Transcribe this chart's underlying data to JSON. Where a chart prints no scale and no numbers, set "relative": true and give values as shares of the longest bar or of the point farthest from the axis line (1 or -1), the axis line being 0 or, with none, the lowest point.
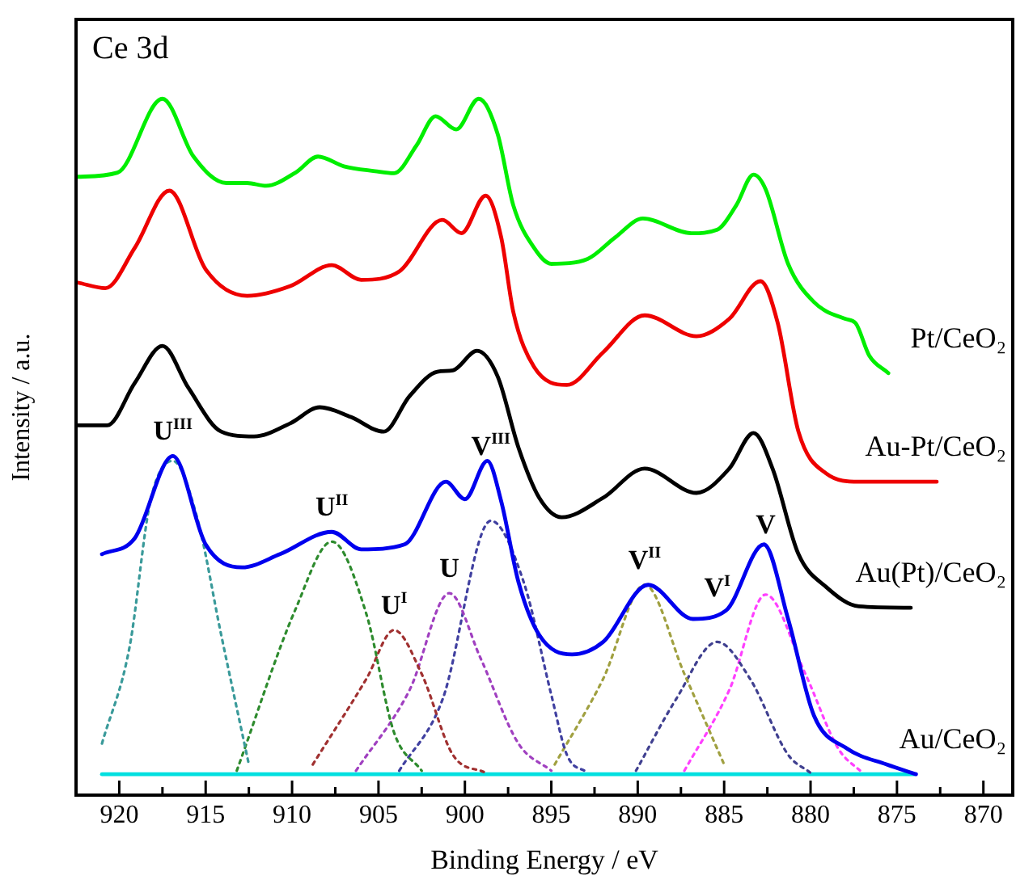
{
  "chart_data": {
    "type": "line",
    "title": "Ce 3d",
    "xlabel": "Binding Energy / eV",
    "ylabel": "Intensity / a.u.",
    "relative": true,
    "legend": false,
    "marker": "none",
    "xlim": [
      922.5,
      868.3
    ],
    "xticks": [
      920,
      {
        "value": 917.5,
        "label": null
      },
      915,
      {
        "value": 912.5,
        "label": null
      },
      910,
      {
        "value": 907.5,
        "label": null
      },
      905,
      {
        "value": 902.5,
        "label": null
      },
      900,
      {
        "value": 897.5,
        "label": null
      },
      895,
      {
        "value": 892.5,
        "label": null
      },
      890,
      {
        "value": 887.5,
        "label": null
      },
      885,
      {
        "value": 882.5,
        "label": null
      },
      880,
      {
        "value": 877.5,
        "label": null
      },
      875,
      {
        "value": 872.5,
        "label": null
      },
      870
    ],
    "series": [
      {
        "name": "Pt/CeO₂",
        "color": "#00ee00",
        "line_style": "solid",
        "x": [
          922.4,
          920.1,
          917.5,
          915.7,
          913.8,
          912.6,
          911.5,
          909.8,
          908.5,
          907,
          905.2,
          904.1,
          902.8,
          901.7,
          900.5,
          899.2,
          898.1,
          897.2,
          896,
          895,
          892.9,
          891.3,
          889.7,
          886.9,
          885.4,
          884.3,
          883.3,
          882.6,
          881.3,
          879.8,
          878,
          877.4,
          876.6,
          875.5
        ],
        "values": [
          0.888,
          0.894,
          1,
          0.917,
          0.879,
          0.879,
          0.875,
          0.894,
          0.917,
          0.903,
          0.896,
          0.893,
          0.933,
          0.975,
          0.956,
          1,
          0.949,
          0.847,
          0.786,
          0.763,
          0.77,
          0.801,
          0.828,
          0.807,
          0.812,
          0.847,
          0.891,
          0.87,
          0.763,
          0.708,
          0.684,
          0.678,
          0.631,
          0.606
        ]
      },
      {
        "name": "Au-Pt/CeO₂",
        "color": "#ee0000",
        "line_style": "solid",
        "x": [
          922.4,
          920.8,
          919.1,
          917.1,
          915,
          912.6,
          910.1,
          907.7,
          906,
          903.8,
          901.3,
          900.2,
          898.8,
          897.9,
          897.2,
          896,
          894.1,
          892,
          889.6,
          886.6,
          884.7,
          882.9,
          881.9,
          880.7,
          879.1,
          877.2,
          872.7
        ],
        "values": [
          0.736,
          0.728,
          0.786,
          0.868,
          0.755,
          0.717,
          0.731,
          0.761,
          0.74,
          0.752,
          0.826,
          0.807,
          0.861,
          0.801,
          0.694,
          0.615,
          0.589,
          0.636,
          0.689,
          0.659,
          0.684,
          0.738,
          0.678,
          0.522,
          0.462,
          0.45,
          0.45
        ]
      },
      {
        "name": "Au(Pt)/CeO₂",
        "color": "#000000",
        "line_style": "solid",
        "x": [
          922.4,
          920.7,
          919.1,
          917.5,
          916,
          914.1,
          912.2,
          910.1,
          908.4,
          906.6,
          904.7,
          903.2,
          901.6,
          900.7,
          899.3,
          898.1,
          896.9,
          895.7,
          894.4,
          892,
          889.6,
          886.6,
          884.7,
          883.3,
          882.2,
          880.7,
          879.1,
          877.2,
          874.2
        ],
        "values": [
          0.531,
          0.531,
          0.592,
          0.645,
          0.585,
          0.522,
          0.515,
          0.534,
          0.557,
          0.543,
          0.522,
          0.573,
          0.608,
          0.61,
          0.638,
          0.601,
          0.499,
          0.427,
          0.399,
          0.427,
          0.469,
          0.434,
          0.469,
          0.52,
          0.469,
          0.346,
          0.299,
          0.271,
          0.269
        ]
      },
      {
        "name": "Au/CeO₂",
        "color": "#0000ee",
        "line_style": "solid",
        "x": [
          921,
          919.1,
          916.9,
          915,
          912.9,
          910.7,
          907.7,
          906,
          903.5,
          901.1,
          900,
          898.7,
          897.9,
          896.9,
          895.7,
          893.8,
          892,
          889.4,
          886.8,
          884.9,
          882.7,
          881.3,
          879.8,
          877.9,
          875.6,
          873.9
        ],
        "values": [
          0.346,
          0.369,
          0.487,
          0.36,
          0.327,
          0.346,
          0.378,
          0.353,
          0.36,
          0.45,
          0.425,
          0.48,
          0.422,
          0.306,
          0.23,
          0.202,
          0.22,
          0.302,
          0.253,
          0.265,
          0.36,
          0.253,
          0.114,
          0.067,
          0.044,
          0.03
        ]
      },
      {
        "color": "#3a9a9a",
        "line_style": "dotted",
        "x": [
          921,
          919.4,
          918.2,
          916.9,
          915.5,
          914.1,
          912.5
        ],
        "values": [
          0.074,
          0.213,
          0.422,
          0.48,
          0.399,
          0.23,
          0.044
        ]
      },
      {
        "color": "#2e8b2e",
        "line_style": "dotted",
        "x": [
          913.2,
          909.8,
          907.7,
          905.7,
          904.1,
          902.5
        ],
        "values": [
          0.035,
          0.267,
          0.364,
          0.26,
          0.09,
          0.035
        ]
      },
      {
        "color": "#a03030",
        "line_style": "dotted",
        "x": [
          908.8,
          905.7,
          904.1,
          902.5,
          900.7,
          898.8
        ],
        "values": [
          0.044,
          0.167,
          0.237,
          0.174,
          0.058,
          0.032
        ]
      },
      {
        "color": "#a040c0",
        "line_style": "dotted",
        "x": [
          906.3,
          903.2,
          900.9,
          899.1,
          896.9,
          895
        ],
        "values": [
          0.035,
          0.151,
          0.29,
          0.197,
          0.074,
          0.035
        ]
      },
      {
        "color": "#4040a0",
        "line_style": "dotted",
        "x": [
          903.8,
          901.3,
          898.5,
          896.6,
          895,
          894.1,
          892.9
        ],
        "values": [
          0.035,
          0.137,
          0.394,
          0.306,
          0.144,
          0.058,
          0.032
        ]
      },
      {
        "color": "#a0a040",
        "line_style": "dotted",
        "x": [
          894.8,
          892,
          889.6,
          887.3,
          885
        ],
        "values": [
          0.044,
          0.167,
          0.302,
          0.174,
          0.044
        ]
      },
      {
        "color": "#404090",
        "line_style": "dotted",
        "x": [
          890.1,
          887.8,
          885.4,
          883.5,
          881.3,
          880
        ],
        "values": [
          0.035,
          0.137,
          0.22,
          0.167,
          0.058,
          0.032
        ]
      },
      {
        "color": "#ff40ff",
        "line_style": "dotted",
        "x": [
          887.3,
          884.7,
          882.6,
          880.3,
          878.4,
          877
        ],
        "values": [
          0.035,
          0.151,
          0.288,
          0.174,
          0.067,
          0.032
        ]
      },
      {
        "color": "#00e0e0",
        "line_style": "solid",
        "x": [
          921,
          874
        ],
        "values": [
          0.03,
          0.03
        ]
      }
    ],
    "annotations": [
      "U$^{III}$",
      "U$^{II}$",
      "U$^{I}$",
      "U",
      "V$^{III}$",
      "V$^{II}$",
      "V$^{I}$",
      "V"
    ]
  }
}
